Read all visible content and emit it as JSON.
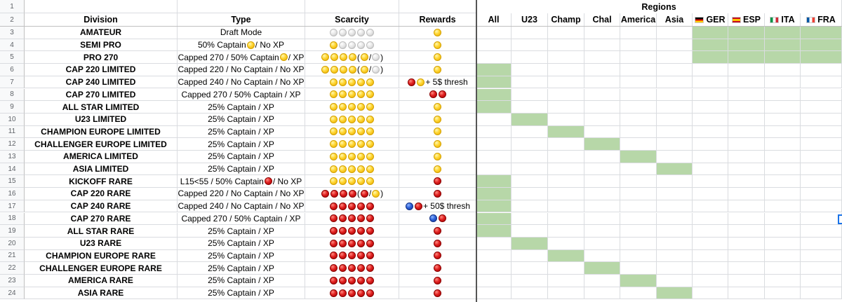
{
  "header": {
    "row1_label": "1",
    "row2_label": "2",
    "regions_label": "Regions",
    "columns": [
      "Division",
      "Type",
      "Scarcity",
      "Rewards"
    ],
    "regions": [
      {
        "label": "All",
        "flag": ""
      },
      {
        "label": "U23",
        "flag": ""
      },
      {
        "label": "Champ",
        "flag": ""
      },
      {
        "label": "Chal",
        "flag": ""
      },
      {
        "label": "America",
        "flag": ""
      },
      {
        "label": "Asia",
        "flag": ""
      },
      {
        "label": "GER",
        "flag": "ger"
      },
      {
        "label": "ESP",
        "flag": "esp"
      },
      {
        "label": "ITA",
        "flag": "ita"
      },
      {
        "label": "FRA",
        "flag": "fra"
      }
    ]
  },
  "colors": {
    "green": "#b7d7a8",
    "gold": "#ffd633",
    "red": "#e02020",
    "silver": "#e3e3e3",
    "blue": "#2e62d9"
  },
  "rows": [
    {
      "num": "3",
      "division": "AMATEUR",
      "type": [
        {
          "t": "Draft Mode"
        }
      ],
      "scarcity": [
        {
          "d": "w"
        },
        {
          "d": "w"
        },
        {
          "d": "w"
        },
        {
          "d": "w"
        },
        {
          "d": "w"
        }
      ],
      "rewards": [
        {
          "d": "y"
        }
      ],
      "regions": [
        "GER",
        "ESP",
        "ITA",
        "FRA"
      ]
    },
    {
      "num": "4",
      "division": "SEMI PRO",
      "type": [
        {
          "t": "50% Captain "
        },
        {
          "d": "y"
        },
        {
          "t": " / No XP"
        }
      ],
      "scarcity": [
        {
          "d": "y"
        },
        {
          "d": "w"
        },
        {
          "d": "w"
        },
        {
          "d": "w"
        },
        {
          "d": "w"
        }
      ],
      "rewards": [
        {
          "d": "y"
        }
      ],
      "regions": [
        "GER",
        "ESP",
        "ITA",
        "FRA"
      ]
    },
    {
      "num": "5",
      "division": "PRO 270",
      "type": [
        {
          "t": "Capped 270 / 50% Captain "
        },
        {
          "d": "y"
        },
        {
          "t": " / XP"
        }
      ],
      "scarcity": [
        {
          "d": "y"
        },
        {
          "d": "y"
        },
        {
          "d": "y"
        },
        {
          "d": "y"
        },
        {
          "t": " ("
        },
        {
          "d": "y"
        },
        {
          "t": "/"
        },
        {
          "d": "w"
        },
        {
          "t": ")"
        }
      ],
      "rewards": [
        {
          "d": "y"
        }
      ],
      "regions": [
        "GER",
        "ESP",
        "ITA",
        "FRA"
      ]
    },
    {
      "num": "6",
      "division": "CAP 220 LIMITED",
      "type": [
        {
          "t": "Capped 220 / No Captain / No XP"
        }
      ],
      "scarcity": [
        {
          "d": "y"
        },
        {
          "d": "y"
        },
        {
          "d": "y"
        },
        {
          "d": "y"
        },
        {
          "t": " ("
        },
        {
          "d": "y"
        },
        {
          "t": "/"
        },
        {
          "d": "w"
        },
        {
          "t": ")"
        }
      ],
      "rewards": [
        {
          "d": "y"
        }
      ],
      "regions": [
        "All"
      ]
    },
    {
      "num": "7",
      "division": "CAP 240 LIMITED",
      "type": [
        {
          "t": "Capped 240 / No Captain / No XP"
        }
      ],
      "scarcity": [
        {
          "d": "y"
        },
        {
          "d": "y"
        },
        {
          "d": "y"
        },
        {
          "d": "y"
        },
        {
          "d": "y"
        }
      ],
      "rewards": [
        {
          "d": "r"
        },
        {
          "d": "y"
        },
        {
          "t": "  + 5$ thresh"
        }
      ],
      "regions": [
        "All"
      ]
    },
    {
      "num": "8",
      "division": "CAP 270 LIMITED",
      "type": [
        {
          "t": "Capped 270 / 50% Captain / XP"
        }
      ],
      "scarcity": [
        {
          "d": "y"
        },
        {
          "d": "y"
        },
        {
          "d": "y"
        },
        {
          "d": "y"
        },
        {
          "d": "y"
        }
      ],
      "rewards": [
        {
          "d": "r"
        },
        {
          "d": "r"
        }
      ],
      "regions": [
        "All"
      ]
    },
    {
      "num": "9",
      "division": "ALL STAR LIMITED",
      "type": [
        {
          "t": "25% Captain / XP"
        }
      ],
      "scarcity": [
        {
          "d": "y"
        },
        {
          "d": "y"
        },
        {
          "d": "y"
        },
        {
          "d": "y"
        },
        {
          "d": "y"
        }
      ],
      "rewards": [
        {
          "d": "y"
        }
      ],
      "regions": [
        "All"
      ]
    },
    {
      "num": "10",
      "division": "U23 LIMITED",
      "type": [
        {
          "t": "25% Captain / XP"
        }
      ],
      "scarcity": [
        {
          "d": "y"
        },
        {
          "d": "y"
        },
        {
          "d": "y"
        },
        {
          "d": "y"
        },
        {
          "d": "y"
        }
      ],
      "rewards": [
        {
          "d": "y"
        }
      ],
      "regions": [
        "U23"
      ]
    },
    {
      "num": "11",
      "division": "CHAMPION EUROPE LIMITED",
      "type": [
        {
          "t": "25% Captain / XP"
        }
      ],
      "scarcity": [
        {
          "d": "y"
        },
        {
          "d": "y"
        },
        {
          "d": "y"
        },
        {
          "d": "y"
        },
        {
          "d": "y"
        }
      ],
      "rewards": [
        {
          "d": "y"
        }
      ],
      "regions": [
        "Champ"
      ]
    },
    {
      "num": "12",
      "division": "CHALLENGER EUROPE LIMITED",
      "type": [
        {
          "t": "25% Captain / XP"
        }
      ],
      "scarcity": [
        {
          "d": "y"
        },
        {
          "d": "y"
        },
        {
          "d": "y"
        },
        {
          "d": "y"
        },
        {
          "d": "y"
        }
      ],
      "rewards": [
        {
          "d": "y"
        }
      ],
      "regions": [
        "Chal"
      ]
    },
    {
      "num": "13",
      "division": "AMERICA LIMITED",
      "type": [
        {
          "t": "25% Captain / XP"
        }
      ],
      "scarcity": [
        {
          "d": "y"
        },
        {
          "d": "y"
        },
        {
          "d": "y"
        },
        {
          "d": "y"
        },
        {
          "d": "y"
        }
      ],
      "rewards": [
        {
          "d": "y"
        }
      ],
      "regions": [
        "America"
      ]
    },
    {
      "num": "14",
      "division": "ASIA LIMITED",
      "type": [
        {
          "t": "25% Captain / XP"
        }
      ],
      "scarcity": [
        {
          "d": "y"
        },
        {
          "d": "y"
        },
        {
          "d": "y"
        },
        {
          "d": "y"
        },
        {
          "d": "y"
        }
      ],
      "rewards": [
        {
          "d": "y"
        }
      ],
      "regions": [
        "Asia"
      ]
    },
    {
      "num": "15",
      "division": "KICKOFF RARE",
      "type": [
        {
          "t": "L15<55 / 50% Captain "
        },
        {
          "d": "r"
        },
        {
          "t": " / No XP"
        }
      ],
      "scarcity": [
        {
          "d": "y"
        },
        {
          "d": "y"
        },
        {
          "d": "y"
        },
        {
          "d": "y"
        },
        {
          "d": "y"
        }
      ],
      "rewards": [
        {
          "d": "r"
        }
      ],
      "regions": [
        "All"
      ]
    },
    {
      "num": "16",
      "division": "CAP 220 RARE",
      "type": [
        {
          "t": "Capped 220 / No Captain / No XP"
        }
      ],
      "scarcity": [
        {
          "d": "r"
        },
        {
          "d": "r"
        },
        {
          "d": "r"
        },
        {
          "d": "r"
        },
        {
          "t": " ("
        },
        {
          "d": "r"
        },
        {
          "t": "/"
        },
        {
          "d": "y"
        },
        {
          "t": ")"
        }
      ],
      "rewards": [
        {
          "d": "r"
        }
      ],
      "regions": [
        "All"
      ]
    },
    {
      "num": "17",
      "division": "CAP 240 RARE",
      "type": [
        {
          "t": "Capped 240 / No Captain / No XP"
        }
      ],
      "scarcity": [
        {
          "d": "r"
        },
        {
          "d": "r"
        },
        {
          "d": "r"
        },
        {
          "d": "r"
        },
        {
          "d": "r"
        }
      ],
      "rewards": [
        {
          "d": "b"
        },
        {
          "d": "r"
        },
        {
          "t": "  + 50$ thresh"
        }
      ],
      "regions": [
        "All"
      ]
    },
    {
      "num": "18",
      "division": "CAP 270 RARE",
      "type": [
        {
          "t": "Capped 270 / 50% Captain / XP"
        }
      ],
      "scarcity": [
        {
          "d": "r"
        },
        {
          "d": "r"
        },
        {
          "d": "r"
        },
        {
          "d": "r"
        },
        {
          "d": "r"
        }
      ],
      "rewards": [
        {
          "d": "b"
        },
        {
          "d": "r"
        }
      ],
      "regions": [
        "All"
      ]
    },
    {
      "num": "19",
      "division": "ALL STAR RARE",
      "type": [
        {
          "t": "25% Captain / XP"
        }
      ],
      "scarcity": [
        {
          "d": "r"
        },
        {
          "d": "r"
        },
        {
          "d": "r"
        },
        {
          "d": "r"
        },
        {
          "d": "r"
        }
      ],
      "rewards": [
        {
          "d": "r"
        }
      ],
      "regions": [
        "All"
      ]
    },
    {
      "num": "20",
      "division": "U23 RARE",
      "type": [
        {
          "t": "25% Captain / XP"
        }
      ],
      "scarcity": [
        {
          "d": "r"
        },
        {
          "d": "r"
        },
        {
          "d": "r"
        },
        {
          "d": "r"
        },
        {
          "d": "r"
        }
      ],
      "rewards": [
        {
          "d": "r"
        }
      ],
      "regions": [
        "U23"
      ]
    },
    {
      "num": "21",
      "division": "CHAMPION EUROPE RARE",
      "type": [
        {
          "t": "25% Captain / XP"
        }
      ],
      "scarcity": [
        {
          "d": "r"
        },
        {
          "d": "r"
        },
        {
          "d": "r"
        },
        {
          "d": "r"
        },
        {
          "d": "r"
        }
      ],
      "rewards": [
        {
          "d": "r"
        }
      ],
      "regions": [
        "Champ"
      ]
    },
    {
      "num": "22",
      "division": "CHALLENGER EUROPE RARE",
      "type": [
        {
          "t": "25% Captain / XP"
        }
      ],
      "scarcity": [
        {
          "d": "r"
        },
        {
          "d": "r"
        },
        {
          "d": "r"
        },
        {
          "d": "r"
        },
        {
          "d": "r"
        }
      ],
      "rewards": [
        {
          "d": "r"
        }
      ],
      "regions": [
        "Chal"
      ]
    },
    {
      "num": "23",
      "division": "AMERICA RARE",
      "type": [
        {
          "t": "25% Captain / XP"
        }
      ],
      "scarcity": [
        {
          "d": "r"
        },
        {
          "d": "r"
        },
        {
          "d": "r"
        },
        {
          "d": "r"
        },
        {
          "d": "r"
        }
      ],
      "rewards": [
        {
          "d": "r"
        }
      ],
      "regions": [
        "America"
      ]
    },
    {
      "num": "24",
      "division": "ASIA RARE",
      "type": [
        {
          "t": "25% Captain / XP"
        }
      ],
      "scarcity": [
        {
          "d": "r"
        },
        {
          "d": "r"
        },
        {
          "d": "r"
        },
        {
          "d": "r"
        },
        {
          "d": "r"
        }
      ],
      "rewards": [
        {
          "d": "r"
        }
      ],
      "regions": [
        "Asia"
      ]
    }
  ]
}
